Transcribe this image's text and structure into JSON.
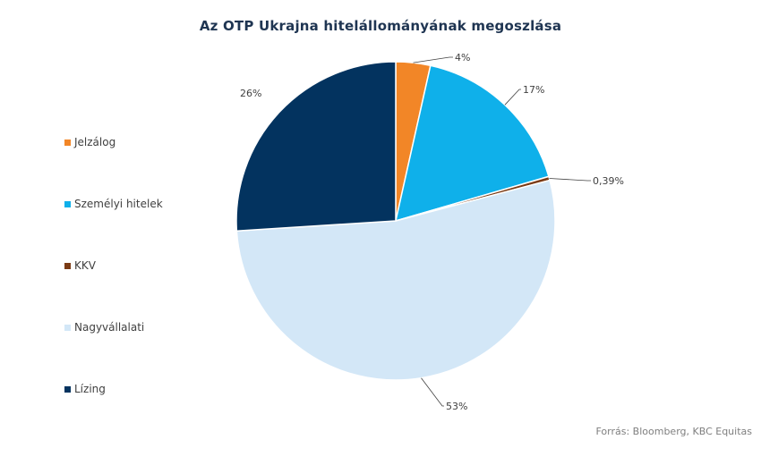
{
  "chart_data": {
    "type": "pie",
    "title": "Az OTP Ukrajna hitelállományának megoszlása",
    "categories": [
      "Jelzálog",
      "Személyi hitelek",
      "KKV",
      "Nagyvállalati",
      "Lízing"
    ],
    "values": [
      3.5,
      17.0,
      0.39,
      53.1,
      26.0
    ],
    "data_labels": [
      "4%",
      "17%",
      "0,39%",
      "53%",
      "26%"
    ],
    "colors": [
      "#f28627",
      "#0fb0ea",
      "#7b3b15",
      "#d3e7f7",
      "#03335f"
    ],
    "start_angle_deg": 0,
    "direction": "clockwise",
    "legend_position": "left"
  },
  "source_note": "Forrás: Bloomberg,  KBC Equitas"
}
